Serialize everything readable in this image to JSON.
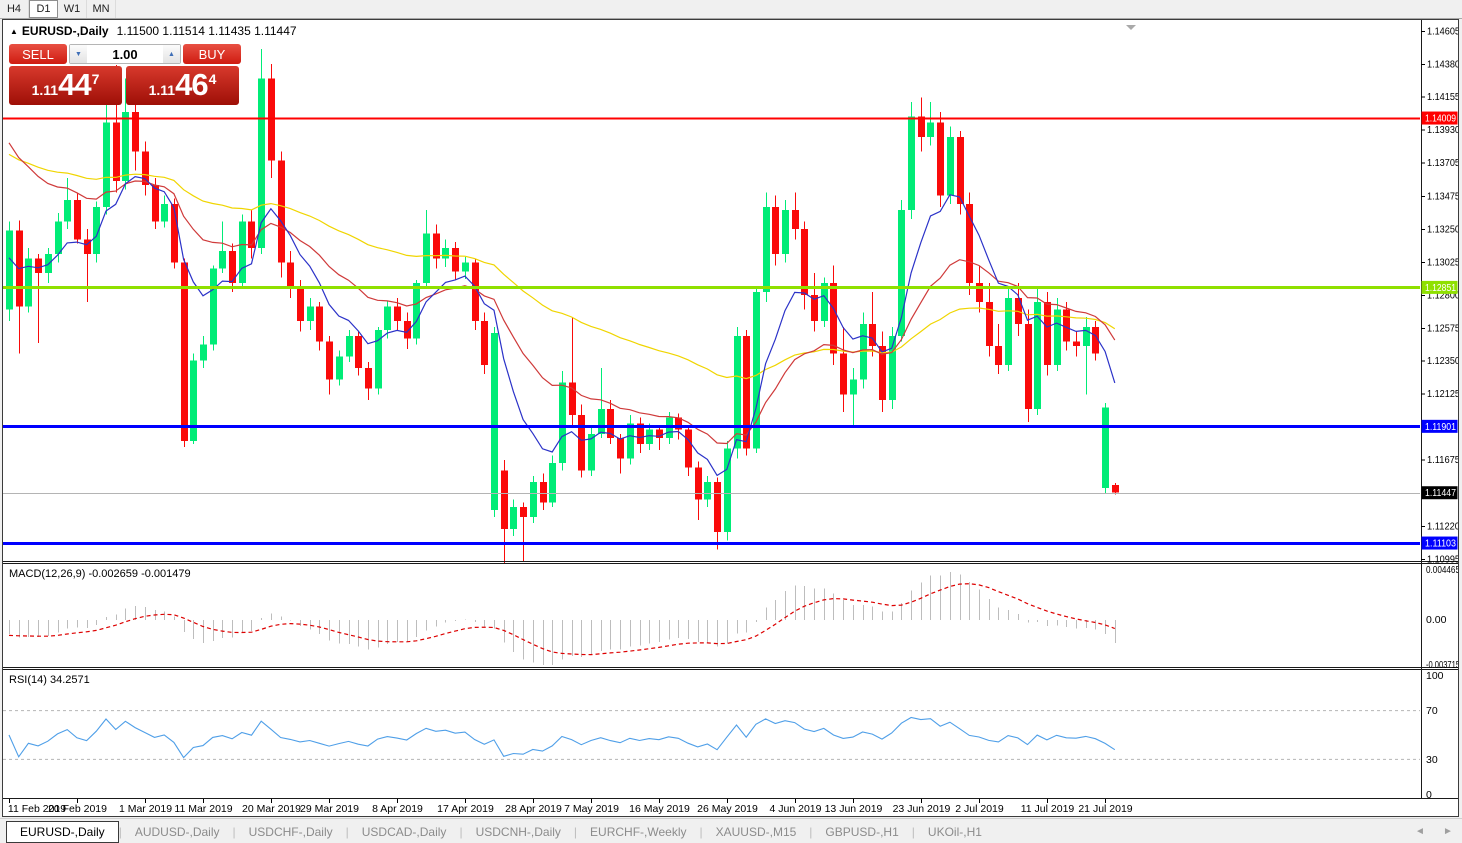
{
  "toolbar": {
    "timeframes": [
      "H4",
      "D1",
      "W1",
      "MN"
    ],
    "active": "D1"
  },
  "window": {
    "title_marker": "▲",
    "symbol_title": "EURUSD-,Daily",
    "ohlc_text": "1.11500 1.11514 1.11435 1.11447"
  },
  "trade_panel": {
    "sell_label": "SELL",
    "buy_label": "BUY",
    "volume": "1.00",
    "down_arrow": "▼",
    "up_arrow": "▲",
    "sell_price": {
      "prefix": "1.11",
      "big": "44",
      "sup": "7"
    },
    "buy_price": {
      "prefix": "1.11",
      "big": "46",
      "sup": "4"
    }
  },
  "price_axis": {
    "ticks": [
      "1.14605",
      "1.14380",
      "1.14155",
      "1.13930",
      "1.13705",
      "1.13475",
      "1.13250",
      "1.13025",
      "1.12800",
      "1.12575",
      "1.12350",
      "1.12125",
      "1.11675",
      "1.11220",
      "1.10995"
    ],
    "badges": [
      {
        "text": "1.14009",
        "price": 1.14009,
        "bg": "#ff0000",
        "fg": "#ffffff",
        "line": "#ff0000",
        "lw": 2
      },
      {
        "text": "1.12851",
        "price": 1.12851,
        "bg": "#8fe000",
        "fg": "#ffffff",
        "line": "#8fe000",
        "lw": 3
      },
      {
        "text": "1.11901",
        "price": 1.11901,
        "bg": "#0000ff",
        "fg": "#ffffff",
        "line": "#0000ff",
        "lw": 3
      },
      {
        "text": "1.11447",
        "price": 1.11447,
        "bg": "#000000",
        "fg": "#ffffff",
        "line": "#b4b4b4",
        "lw": 1
      },
      {
        "text": "1.11103",
        "price": 1.11103,
        "bg": "#0000ff",
        "fg": "#ffffff",
        "line": "#0000ff",
        "lw": 3
      }
    ]
  },
  "date_axis": {
    "labels": [
      {
        "text": "11 Feb 2019",
        "i": 0
      },
      {
        "text": "20 Feb 2019",
        "i": 7
      },
      {
        "text": "1 Mar 2019",
        "i": 14
      },
      {
        "text": "11 Mar 2019",
        "i": 20
      },
      {
        "text": "20 Mar 2019",
        "i": 27
      },
      {
        "text": "29 Mar 2019",
        "i": 33
      },
      {
        "text": "8 Apr 2019",
        "i": 40
      },
      {
        "text": "17 Apr 2019",
        "i": 47
      },
      {
        "text": "28 Apr 2019",
        "i": 54
      },
      {
        "text": "7 May 2019",
        "i": 60
      },
      {
        "text": "16 May 2019",
        "i": 67
      },
      {
        "text": "26 May 2019",
        "i": 74
      },
      {
        "text": "4 Jun 2019",
        "i": 81
      },
      {
        "text": "13 Jun 2019",
        "i": 87
      },
      {
        "text": "23 Jun 2019",
        "i": 94
      },
      {
        "text": "2 Jul 2019",
        "i": 100
      },
      {
        "text": "11 Jul 2019",
        "i": 107
      },
      {
        "text": "21 Jul 2019",
        "i": 113
      }
    ]
  },
  "macd_panel": {
    "label": "MACD(12,26,9) -0.002659 -0.001479",
    "values": [
      -0.002659,
      -0.001479
    ],
    "scale": [
      "0.004465",
      "0.00",
      "-0.003715"
    ],
    "hist_color": "#bdbdbd",
    "signal_color": "#dd0000"
  },
  "rsi_panel": {
    "label": "RSI(14) 34.2571",
    "value": 34.2571,
    "scale": [
      "100",
      "70",
      "30",
      "0"
    ],
    "levels": [
      70,
      30
    ],
    "line_color": "#4f9fe8",
    "level_color": "#b5b5b5"
  },
  "tabs": {
    "items": [
      "EURUSD-,Daily",
      "AUDUSD-,Daily",
      "USDCHF-,Daily",
      "USDCAD-,Daily",
      "USDCNH-,Daily",
      "EURCHF-,Weekly",
      "XAUUSD-,M15",
      "GBPUSD-,H1",
      "UKOil-,H1"
    ],
    "active": 0,
    "scroll_left": "◄",
    "scroll_right": "►"
  },
  "chart_data": {
    "type": "candlestick",
    "symbol": "EURUSD-",
    "period": "Daily",
    "x_first_date": "11 Feb 2019",
    "x_last_date": "21 Jul 2019",
    "price_range": [
      1.1095,
      1.1466
    ],
    "colors": {
      "bull": "#00ec77",
      "bear": "#fa0a0a",
      "ma_fast": "#2b32c8",
      "ma_mid": "#cf3a3a",
      "ma_slow": "#f0d500",
      "current_line": "#b4b4b4"
    },
    "indicators": {
      "ma_periods": [
        8,
        21,
        55
      ],
      "macd": [
        12,
        26,
        9
      ],
      "rsi": 14
    },
    "current_price": 1.11447,
    "candles": [
      [
        1.127,
        1.133,
        1.1262,
        1.1324
      ],
      [
        1.1324,
        1.1331,
        1.124,
        1.1272
      ],
      [
        1.1272,
        1.1312,
        1.1268,
        1.1305
      ],
      [
        1.1305,
        1.1308,
        1.1247,
        1.1295
      ],
      [
        1.1295,
        1.1312,
        1.1288,
        1.1308
      ],
      [
        1.1308,
        1.1336,
        1.1302,
        1.133
      ],
      [
        1.133,
        1.136,
        1.1325,
        1.1345
      ],
      [
        1.1345,
        1.135,
        1.1315,
        1.1318
      ],
      [
        1.1318,
        1.1325,
        1.1275,
        1.1308
      ],
      [
        1.1308,
        1.1344,
        1.1302,
        1.134
      ],
      [
        1.134,
        1.1415,
        1.1335,
        1.1398
      ],
      [
        1.1398,
        1.1437,
        1.135,
        1.1358
      ],
      [
        1.1358,
        1.1428,
        1.1352,
        1.1405
      ],
      [
        1.1405,
        1.1419,
        1.1365,
        1.1378
      ],
      [
        1.1378,
        1.1385,
        1.1348,
        1.1355
      ],
      [
        1.1355,
        1.136,
        1.1325,
        1.133
      ],
      [
        1.133,
        1.1348,
        1.1326,
        1.1342
      ],
      [
        1.1342,
        1.1346,
        1.1298,
        1.1302
      ],
      [
        1.1302,
        1.1305,
        1.1176,
        1.118
      ],
      [
        1.118,
        1.124,
        1.1178,
        1.1235
      ],
      [
        1.1235,
        1.1252,
        1.123,
        1.1246
      ],
      [
        1.1246,
        1.13,
        1.1242,
        1.1298
      ],
      [
        1.1298,
        1.133,
        1.1295,
        1.131
      ],
      [
        1.131,
        1.1315,
        1.1282,
        1.1288
      ],
      [
        1.1288,
        1.1335,
        1.1285,
        1.133
      ],
      [
        1.133,
        1.1338,
        1.1305,
        1.1312
      ],
      [
        1.1312,
        1.1448,
        1.1308,
        1.1428
      ],
      [
        1.1428,
        1.1438,
        1.136,
        1.1372
      ],
      [
        1.1372,
        1.1378,
        1.1292,
        1.1302
      ],
      [
        1.1302,
        1.131,
        1.1278,
        1.1285
      ],
      [
        1.1285,
        1.129,
        1.1255,
        1.1262
      ],
      [
        1.1262,
        1.1278,
        1.1256,
        1.1272
      ],
      [
        1.1272,
        1.1275,
        1.1242,
        1.1248
      ],
      [
        1.1248,
        1.1252,
        1.1212,
        1.1222
      ],
      [
        1.1222,
        1.1242,
        1.1218,
        1.1238
      ],
      [
        1.1238,
        1.1256,
        1.1234,
        1.1252
      ],
      [
        1.1252,
        1.1255,
        1.1225,
        1.123
      ],
      [
        1.123,
        1.1234,
        1.1208,
        1.1216
      ],
      [
        1.1216,
        1.1258,
        1.1212,
        1.1256
      ],
      [
        1.1256,
        1.1276,
        1.125,
        1.1272
      ],
      [
        1.1272,
        1.1278,
        1.1256,
        1.1262
      ],
      [
        1.1262,
        1.1268,
        1.1243,
        1.125
      ],
      [
        1.125,
        1.129,
        1.1246,
        1.1288
      ],
      [
        1.1288,
        1.1338,
        1.1284,
        1.1322
      ],
      [
        1.1322,
        1.1328,
        1.1298,
        1.1305
      ],
      [
        1.1305,
        1.1318,
        1.1299,
        1.1312
      ],
      [
        1.1312,
        1.1316,
        1.129,
        1.1296
      ],
      [
        1.1296,
        1.1306,
        1.1291,
        1.1302
      ],
      [
        1.1302,
        1.1305,
        1.1256,
        1.1262
      ],
      [
        1.1262,
        1.1268,
        1.1226,
        1.1232
      ],
      [
        1.1133,
        1.1258,
        1.1128,
        1.1254
      ],
      [
        1.116,
        1.1167,
        1.1096,
        1.112
      ],
      [
        1.112,
        1.114,
        1.1115,
        1.1135
      ],
      [
        1.1135,
        1.1138,
        1.1098,
        1.1128
      ],
      [
        1.1128,
        1.1156,
        1.1124,
        1.1152
      ],
      [
        1.1152,
        1.1158,
        1.1133,
        1.1138
      ],
      [
        1.1138,
        1.117,
        1.1135,
        1.1165
      ],
      [
        1.1165,
        1.1228,
        1.116,
        1.122
      ],
      [
        1.122,
        1.1265,
        1.119,
        1.1198
      ],
      [
        1.1198,
        1.1205,
        1.1155,
        1.116
      ],
      [
        1.116,
        1.119,
        1.1156,
        1.1185
      ],
      [
        1.1185,
        1.123,
        1.1182,
        1.1202
      ],
      [
        1.1202,
        1.1208,
        1.1178,
        1.1182
      ],
      [
        1.1182,
        1.1185,
        1.1158,
        1.1168
      ],
      [
        1.1168,
        1.1198,
        1.1164,
        1.1192
      ],
      [
        1.1192,
        1.1196,
        1.1172,
        1.1178
      ],
      [
        1.1178,
        1.1192,
        1.1174,
        1.1188
      ],
      [
        1.1188,
        1.1191,
        1.1174,
        1.1182
      ],
      [
        1.1182,
        1.12,
        1.1178,
        1.1196
      ],
      [
        1.1196,
        1.1199,
        1.1181,
        1.1188
      ],
      [
        1.1188,
        1.119,
        1.1156,
        1.1162
      ],
      [
        1.1162,
        1.1166,
        1.1126,
        1.114
      ],
      [
        1.114,
        1.1156,
        1.1135,
        1.1152
      ],
      [
        1.1152,
        1.1155,
        1.1106,
        1.1118
      ],
      [
        1.1118,
        1.118,
        1.1112,
        1.1175
      ],
      [
        1.1175,
        1.1258,
        1.1168,
        1.1252
      ],
      [
        1.1252,
        1.1256,
        1.117,
        1.1175
      ],
      [
        1.1175,
        1.1285,
        1.1172,
        1.1282
      ],
      [
        1.1282,
        1.135,
        1.1275,
        1.134
      ],
      [
        1.134,
        1.1348,
        1.13,
        1.1308
      ],
      [
        1.1308,
        1.1345,
        1.1302,
        1.1338
      ],
      [
        1.1338,
        1.135,
        1.1318,
        1.1325
      ],
      [
        1.1325,
        1.133,
        1.127,
        1.128
      ],
      [
        1.128,
        1.1295,
        1.1255,
        1.1262
      ],
      [
        1.1262,
        1.1292,
        1.1258,
        1.1288
      ],
      [
        1.1288,
        1.13,
        1.1232,
        1.124
      ],
      [
        1.124,
        1.1258,
        1.12,
        1.1212
      ],
      [
        1.1212,
        1.123,
        1.119,
        1.1222
      ],
      [
        1.1222,
        1.1268,
        1.1216,
        1.126
      ],
      [
        1.126,
        1.1282,
        1.1238,
        1.1245
      ],
      [
        1.1245,
        1.1255,
        1.12,
        1.1208
      ],
      [
        1.1208,
        1.1258,
        1.1202,
        1.1252
      ],
      [
        1.1252,
        1.1345,
        1.1248,
        1.1338
      ],
      [
        1.1338,
        1.1412,
        1.1332,
        1.1402
      ],
      [
        1.1402,
        1.1415,
        1.1378,
        1.1388
      ],
      [
        1.1388,
        1.1412,
        1.1382,
        1.1398
      ],
      [
        1.1398,
        1.1405,
        1.134,
        1.1348
      ],
      [
        1.1348,
        1.1395,
        1.1342,
        1.1388
      ],
      [
        1.1388,
        1.1392,
        1.1335,
        1.1342
      ],
      [
        1.1342,
        1.135,
        1.128,
        1.1288
      ],
      [
        1.1288,
        1.13,
        1.1268,
        1.1275
      ],
      [
        1.1275,
        1.1288,
        1.1238,
        1.1245
      ],
      [
        1.1245,
        1.126,
        1.1226,
        1.1232
      ],
      [
        1.1232,
        1.1285,
        1.1228,
        1.1278
      ],
      [
        1.1278,
        1.1288,
        1.1252,
        1.126
      ],
      [
        1.126,
        1.127,
        1.1193,
        1.1202
      ],
      [
        1.1202,
        1.1285,
        1.1198,
        1.1275
      ],
      [
        1.1275,
        1.1282,
        1.1225,
        1.1232
      ],
      [
        1.1232,
        1.1278,
        1.1228,
        1.127
      ],
      [
        1.127,
        1.1275,
        1.1242,
        1.1248
      ],
      [
        1.1248,
        1.1255,
        1.1238,
        1.1245
      ],
      [
        1.1245,
        1.1265,
        1.1212,
        1.1258
      ],
      [
        1.1258,
        1.1262,
        1.1235,
        1.124
      ],
      [
        1.1148,
        1.1206,
        1.1144,
        1.1203
      ],
      [
        1.115,
        1.11514,
        1.11435,
        1.11447
      ]
    ]
  }
}
